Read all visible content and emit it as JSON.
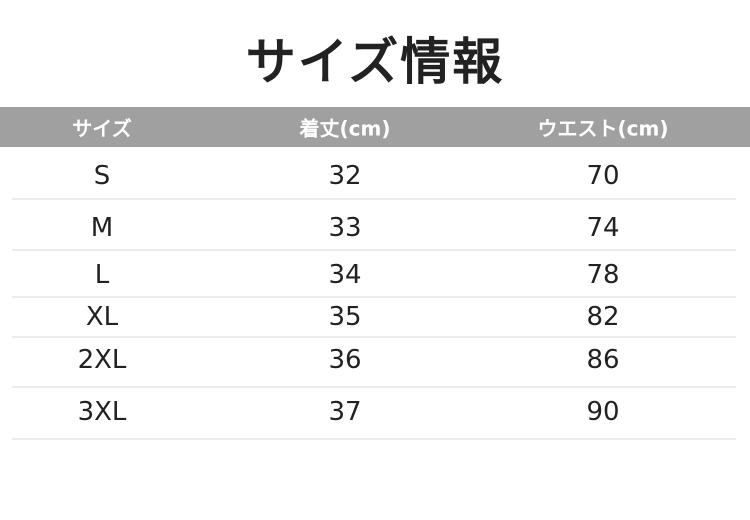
{
  "title": "サイズ情報",
  "table": {
    "headers": [
      "サイズ",
      "着丈(cm)",
      "ウエスト(cm)"
    ],
    "rows": [
      [
        "S",
        "32",
        "70"
      ],
      [
        "M",
        "33",
        "74"
      ],
      [
        "L",
        "34",
        "78"
      ],
      [
        "XL",
        "35",
        "82"
      ],
      [
        "2XL",
        "36",
        "86"
      ],
      [
        "3XL",
        "37",
        "90"
      ]
    ]
  },
  "colors": {
    "header_bg": "#a0a0a0",
    "header_text": "#ffffff",
    "divider": "#ececec"
  }
}
